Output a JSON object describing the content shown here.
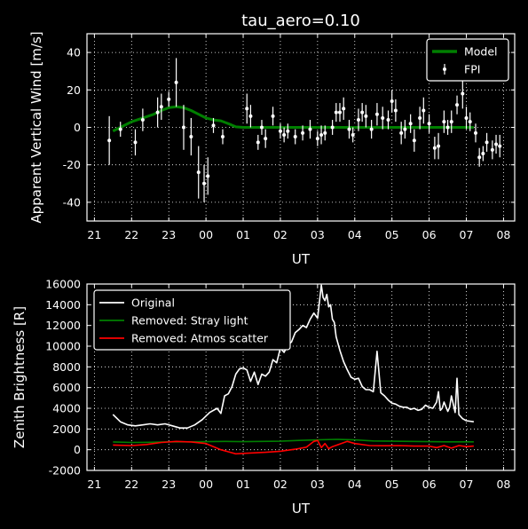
{
  "chart_data": [
    {
      "type": "line",
      "title": "tau_aero=0.10",
      "xlabel": "UT",
      "ylabel": "Apparent Vertical Wind [m/s]",
      "xlim": [
        20.8,
        32.3
      ],
      "ylim": [
        -50,
        50
      ],
      "x_tick_values": [
        21,
        22,
        23,
        24,
        25,
        26,
        27,
        28,
        29,
        30,
        31,
        32
      ],
      "x_tick_labels": [
        "21",
        "22",
        "23",
        "00",
        "01",
        "02",
        "03",
        "04",
        "05",
        "06",
        "07",
        "08"
      ],
      "y_ticks": [
        -40,
        -20,
        0,
        20,
        40
      ],
      "grid": true,
      "legend_position": "upper right",
      "legend": [
        "Model",
        "FPI"
      ],
      "colors": {
        "Model": "#007f00",
        "FPI": "#ffffff"
      },
      "series": [
        {
          "name": "Model",
          "style": "line",
          "x": [
            21.5,
            21.8,
            22.0,
            22.3,
            22.6,
            22.8,
            23.0,
            23.2,
            23.4,
            23.6,
            23.8,
            24.0,
            24.2,
            24.4,
            24.6,
            24.8,
            25.0,
            25.5,
            26.0,
            26.5,
            27.0,
            27.5,
            28.0,
            28.5,
            29.0,
            29.5,
            30.0,
            30.5,
            31.0,
            31.2
          ],
          "y": [
            -2,
            1,
            3,
            5,
            7,
            9,
            10.5,
            11,
            10.5,
            9,
            7,
            5,
            4,
            3.5,
            2,
            0.3,
            0,
            0,
            0,
            0,
            0,
            0,
            0,
            0,
            0,
            0,
            0,
            0,
            0,
            0
          ]
        },
        {
          "name": "FPI",
          "style": "errorbar",
          "x": [
            21.4,
            21.7,
            22.1,
            22.3,
            22.7,
            22.8,
            23.0,
            23.2,
            23.4,
            23.6,
            23.8,
            23.95,
            24.05,
            24.2,
            24.45,
            25.1,
            25.2,
            25.4,
            25.5,
            25.6,
            25.8,
            26.0,
            26.1,
            26.2,
            26.4,
            26.6,
            26.8,
            27.0,
            27.1,
            27.2,
            27.4,
            27.5,
            27.6,
            27.7,
            27.85,
            27.95,
            28.1,
            28.2,
            28.3,
            28.45,
            28.6,
            28.75,
            28.9,
            29.0,
            29.1,
            29.25,
            29.35,
            29.5,
            29.6,
            29.75,
            29.85,
            30.0,
            30.15,
            30.25,
            30.4,
            30.5,
            30.6,
            30.75,
            30.9,
            31.0,
            31.1,
            31.25,
            31.35,
            31.45,
            31.55,
            31.7,
            31.8,
            31.9
          ],
          "y": [
            -7,
            -1,
            -8,
            4,
            8,
            11,
            15,
            24,
            0,
            -5,
            -24,
            -30,
            -26,
            1,
            -5,
            10,
            6,
            -8,
            0,
            -6,
            6,
            -2,
            -4,
            -2,
            -5,
            -3,
            -1,
            -6,
            -4,
            -3,
            0,
            8,
            8,
            10,
            -1,
            -4,
            4,
            8,
            6,
            -1,
            7,
            5,
            4,
            14,
            9,
            -3,
            -1,
            2,
            -7,
            5,
            9,
            2,
            -11,
            -10,
            3,
            0,
            3,
            12,
            18,
            5,
            3,
            -3,
            -16,
            -14,
            -8,
            -12,
            -9,
            -10
          ],
          "err": [
            13,
            4,
            7,
            6,
            8,
            7,
            4,
            13,
            12,
            10,
            14,
            10,
            10,
            4,
            4,
            8,
            6,
            4,
            4,
            5,
            5,
            4,
            4,
            4,
            4,
            4,
            5,
            4,
            5,
            4,
            4,
            5,
            5,
            6,
            5,
            4,
            6,
            5,
            6,
            5,
            6,
            6,
            5,
            6,
            6,
            6,
            5,
            5,
            6,
            6,
            7,
            5,
            6,
            7,
            6,
            4,
            6,
            5,
            8,
            6,
            5,
            5,
            5,
            4,
            5,
            5,
            5,
            6
          ]
        }
      ]
    },
    {
      "type": "line",
      "title": "",
      "xlabel": "UT",
      "ylabel": "Zenith Brightness [R]",
      "xlim": [
        20.8,
        32.3
      ],
      "ylim": [
        -2000,
        16000
      ],
      "x_tick_values": [
        21,
        22,
        23,
        24,
        25,
        26,
        27,
        28,
        29,
        30,
        31,
        32
      ],
      "x_tick_labels": [
        "21",
        "22",
        "23",
        "00",
        "01",
        "02",
        "03",
        "04",
        "05",
        "06",
        "07",
        "08"
      ],
      "y_ticks": [
        -2000,
        0,
        2000,
        4000,
        6000,
        8000,
        10000,
        12000,
        14000,
        16000
      ],
      "grid": true,
      "legend_position": "upper left",
      "legend": [
        "Original",
        "Removed: Stray light",
        "Removed: Atmos scatter"
      ],
      "colors": {
        "Original": "#ffffff",
        "Removed: Stray light": "#007f00",
        "Removed: Atmos scatter": "#ff0000"
      },
      "series": [
        {
          "name": "Original",
          "x": [
            21.5,
            21.7,
            21.9,
            22.1,
            22.3,
            22.5,
            22.7,
            22.9,
            23.1,
            23.3,
            23.5,
            23.7,
            23.9,
            24.1,
            24.3,
            24.4,
            24.5,
            24.6,
            24.7,
            24.8,
            24.9,
            25.0,
            25.1,
            25.2,
            25.3,
            25.4,
            25.5,
            25.6,
            25.7,
            25.8,
            25.9,
            26.0,
            26.1,
            26.2,
            26.3,
            26.4,
            26.5,
            26.6,
            26.7,
            26.8,
            26.9,
            27.0,
            27.1,
            27.15,
            27.2,
            27.25,
            27.3,
            27.35,
            27.4,
            27.45,
            27.5,
            27.6,
            27.7,
            27.8,
            27.9,
            28.0,
            28.1,
            28.2,
            28.3,
            28.4,
            28.5,
            28.6,
            28.7,
            28.8,
            28.9,
            29.0,
            29.1,
            29.2,
            29.3,
            29.4,
            29.5,
            29.6,
            29.7,
            29.8,
            29.9,
            30.0,
            30.1,
            30.2,
            30.25,
            30.3,
            30.35,
            30.4,
            30.5,
            30.55,
            30.6,
            30.7,
            30.75,
            30.8,
            30.9,
            31.0,
            31.2
          ],
          "y": [
            3400,
            2700,
            2400,
            2300,
            2400,
            2500,
            2400,
            2500,
            2300,
            2100,
            2100,
            2400,
            2900,
            3600,
            4000,
            3500,
            5200,
            5400,
            6100,
            7300,
            7800,
            7900,
            7700,
            6600,
            7500,
            6300,
            7300,
            7100,
            7500,
            8700,
            8400,
            9800,
            9400,
            10100,
            10400,
            11300,
            11600,
            12000,
            11800,
            12600,
            13200,
            12700,
            15900,
            14700,
            14400,
            15000,
            13800,
            14000,
            12600,
            12300,
            10900,
            9600,
            8500,
            7700,
            7000,
            6800,
            6900,
            6100,
            5800,
            5800,
            5600,
            9500,
            5500,
            5200,
            4800,
            4500,
            4400,
            4200,
            4100,
            4100,
            3900,
            4000,
            3800,
            3900,
            4300,
            4100,
            4000,
            4600,
            5600,
            3800,
            4000,
            4600,
            3700,
            4100,
            5200,
            3600,
            6900,
            3400,
            3000,
            2800,
            2700
          ]
        },
        {
          "name": "Removed: Stray light",
          "x": [
            21.5,
            22.0,
            22.5,
            23.0,
            23.5,
            24.0,
            24.5,
            25.0,
            25.5,
            26.0,
            26.5,
            27.0,
            27.5,
            28.0,
            28.5,
            29.0,
            29.5,
            30.0,
            30.5,
            31.0,
            31.2
          ],
          "y": [
            750,
            700,
            720,
            760,
            760,
            780,
            800,
            780,
            800,
            820,
            900,
            950,
            1000,
            950,
            850,
            820,
            800,
            780,
            760,
            760,
            760
          ]
        },
        {
          "name": "Removed: Atmos scatter",
          "x": [
            21.5,
            22.0,
            22.4,
            22.8,
            23.2,
            23.6,
            24.0,
            24.2,
            24.4,
            24.6,
            24.8,
            25.0,
            25.3,
            25.6,
            26.0,
            26.4,
            26.7,
            26.9,
            27.0,
            27.1,
            27.2,
            27.3,
            27.4,
            27.6,
            27.8,
            28.0,
            28.4,
            28.8,
            29.2,
            29.6,
            30.0,
            30.2,
            30.4,
            30.6,
            30.8,
            31.0,
            31.2
          ],
          "y": [
            450,
            400,
            500,
            700,
            800,
            750,
            600,
            300,
            0,
            -200,
            -400,
            -350,
            -300,
            -250,
            -150,
            50,
            250,
            800,
            900,
            200,
            600,
            100,
            300,
            550,
            800,
            600,
            400,
            380,
            400,
            350,
            350,
            200,
            400,
            150,
            400,
            300,
            350
          ]
        }
      ]
    }
  ]
}
